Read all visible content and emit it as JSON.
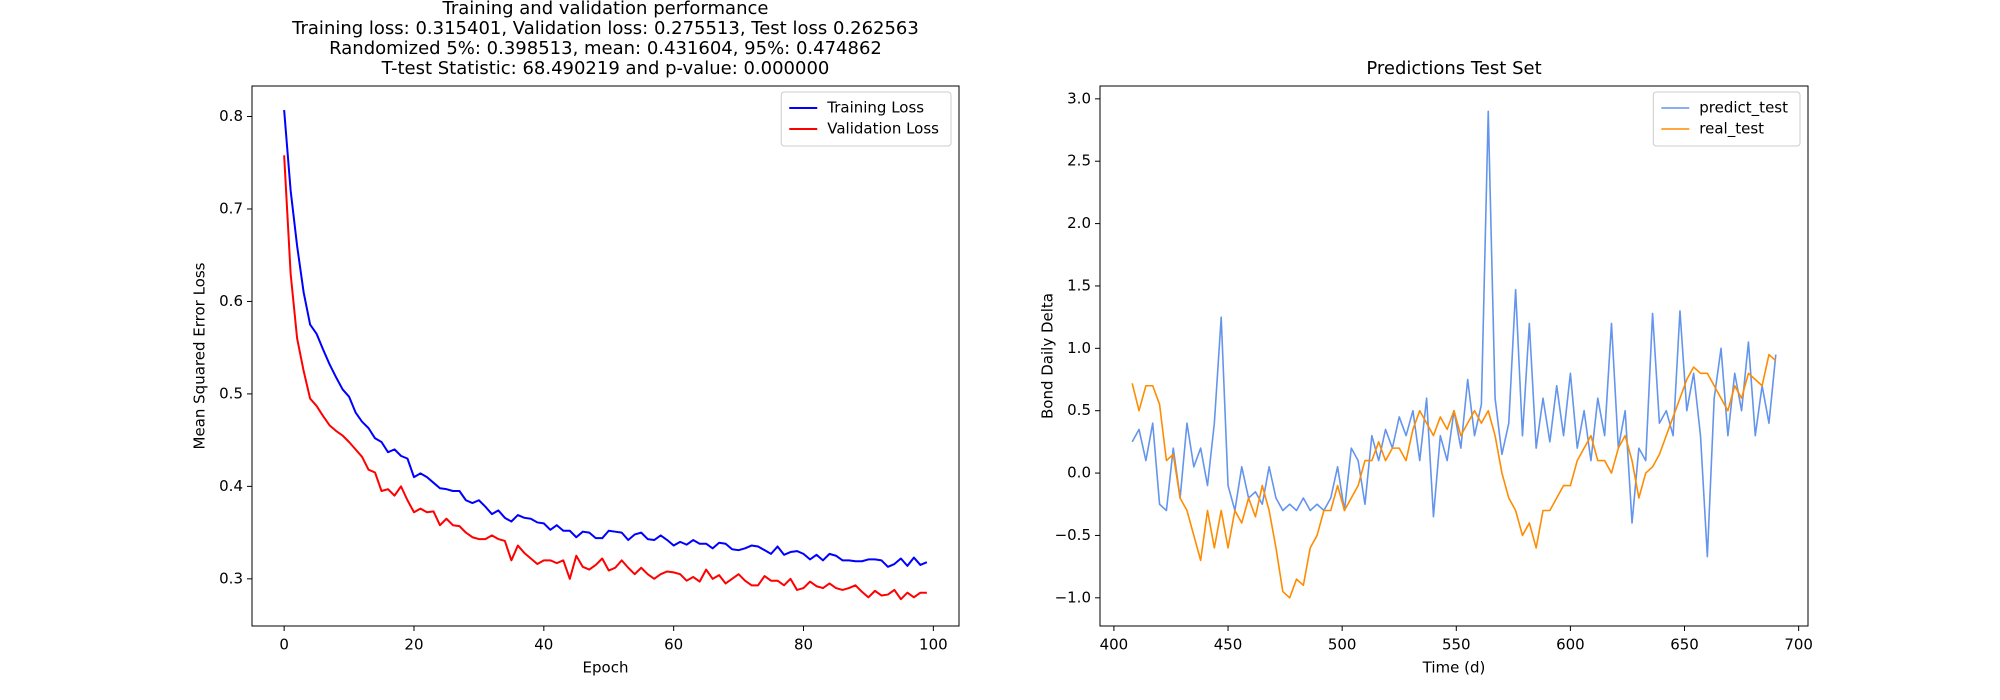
{
  "chart_data": [
    {
      "type": "line",
      "title": "Training and validation performance",
      "subtitle": [
        "Training loss: 0.315401, Validation loss: 0.275513, Test loss 0.262563",
        "Randomized 5%: 0.398513, mean: 0.431604, 95%: 0.474862",
        "T-test Statistic: 68.490219 and p-value: 0.000000"
      ],
      "xlabel": "Epoch",
      "ylabel": "Mean Squared Error Loss",
      "xlim": [
        -4.95,
        103.95
      ],
      "ylim": [
        0.249,
        0.833
      ],
      "xticks": [
        0,
        20,
        40,
        60,
        80,
        100
      ],
      "yticks": [
        0.3,
        0.4,
        0.5,
        0.6,
        0.7,
        0.8
      ],
      "legend": "upper right",
      "line_width": 2,
      "x": [
        0,
        1,
        2,
        3,
        4,
        5,
        6,
        7,
        8,
        9,
        10,
        11,
        12,
        13,
        14,
        15,
        16,
        17,
        18,
        19,
        20,
        21,
        22,
        23,
        24,
        25,
        26,
        27,
        28,
        29,
        30,
        31,
        32,
        33,
        34,
        35,
        36,
        37,
        38,
        39,
        40,
        41,
        42,
        43,
        44,
        45,
        46,
        47,
        48,
        49,
        50,
        51,
        52,
        53,
        54,
        55,
        56,
        57,
        58,
        59,
        60,
        61,
        62,
        63,
        64,
        65,
        66,
        67,
        68,
        69,
        70,
        71,
        72,
        73,
        74,
        75,
        76,
        77,
        78,
        79,
        80,
        81,
        82,
        83,
        84,
        85,
        86,
        87,
        88,
        89,
        90,
        91,
        92,
        93,
        94,
        95,
        96,
        97,
        98,
        99
      ],
      "series": [
        {
          "name": "Training Loss",
          "color": "#0000ff",
          "values": [
            0.807,
            0.72,
            0.66,
            0.61,
            0.575,
            0.565,
            0.548,
            0.532,
            0.518,
            0.505,
            0.497,
            0.48,
            0.47,
            0.463,
            0.452,
            0.448,
            0.437,
            0.44,
            0.433,
            0.43,
            0.41,
            0.414,
            0.41,
            0.404,
            0.398,
            0.397,
            0.395,
            0.395,
            0.385,
            0.382,
            0.385,
            0.378,
            0.37,
            0.374,
            0.366,
            0.362,
            0.369,
            0.366,
            0.365,
            0.361,
            0.36,
            0.353,
            0.358,
            0.352,
            0.352,
            0.345,
            0.351,
            0.35,
            0.344,
            0.344,
            0.352,
            0.351,
            0.35,
            0.342,
            0.348,
            0.35,
            0.343,
            0.342,
            0.347,
            0.342,
            0.336,
            0.34,
            0.337,
            0.342,
            0.338,
            0.338,
            0.333,
            0.339,
            0.338,
            0.332,
            0.331,
            0.333,
            0.336,
            0.335,
            0.331,
            0.327,
            0.335,
            0.326,
            0.329,
            0.33,
            0.327,
            0.321,
            0.326,
            0.32,
            0.327,
            0.325,
            0.32,
            0.32,
            0.319,
            0.319,
            0.321,
            0.321,
            0.32,
            0.313,
            0.316,
            0.322,
            0.314,
            0.323,
            0.315,
            0.318
          ]
        },
        {
          "name": "Validation Loss",
          "color": "#ff0000",
          "values": [
            0.758,
            0.63,
            0.56,
            0.525,
            0.495,
            0.487,
            0.476,
            0.466,
            0.46,
            0.455,
            0.448,
            0.44,
            0.432,
            0.418,
            0.415,
            0.395,
            0.397,
            0.39,
            0.4,
            0.385,
            0.372,
            0.376,
            0.372,
            0.373,
            0.358,
            0.365,
            0.358,
            0.357,
            0.35,
            0.345,
            0.343,
            0.343,
            0.347,
            0.343,
            0.341,
            0.32,
            0.336,
            0.328,
            0.322,
            0.316,
            0.32,
            0.32,
            0.317,
            0.32,
            0.3,
            0.325,
            0.313,
            0.31,
            0.315,
            0.322,
            0.309,
            0.312,
            0.32,
            0.312,
            0.305,
            0.312,
            0.305,
            0.3,
            0.305,
            0.308,
            0.307,
            0.305,
            0.298,
            0.302,
            0.297,
            0.31,
            0.3,
            0.304,
            0.295,
            0.3,
            0.305,
            0.298,
            0.293,
            0.293,
            0.303,
            0.298,
            0.298,
            0.293,
            0.3,
            0.288,
            0.29,
            0.297,
            0.292,
            0.29,
            0.295,
            0.29,
            0.288,
            0.29,
            0.293,
            0.286,
            0.28,
            0.287,
            0.282,
            0.283,
            0.288,
            0.278,
            0.285,
            0.28,
            0.285,
            0.285
          ]
        }
      ]
    },
    {
      "type": "line",
      "title": "Predictions Test Set",
      "xlabel": "Time (d)",
      "ylabel": "Bond Daily Delta",
      "xlim": [
        393.9,
        704.1
      ],
      "ylim": [
        -1.226,
        3.103
      ],
      "xticks": [
        400,
        450,
        500,
        550,
        600,
        650,
        700
      ],
      "yticks": [
        {
          "value": -1,
          "label": "−1.0"
        },
        {
          "value": -0.5,
          "label": "−0.5"
        },
        {
          "value": 0,
          "label": "0.0"
        },
        {
          "value": 0.5,
          "label": "0.5"
        },
        {
          "value": 1,
          "label": "1.0"
        },
        {
          "value": 1.5,
          "label": "1.5"
        },
        {
          "value": 2,
          "label": "2.0"
        },
        {
          "value": 2.5,
          "label": "2.5"
        },
        {
          "value": 3,
          "label": "3.0"
        }
      ],
      "legend": "upper right",
      "line_width": 1.6,
      "x": [
        408,
        411,
        414,
        417,
        420,
        423,
        426,
        429,
        432,
        435,
        438,
        441,
        444,
        447,
        450,
        453,
        456,
        459,
        462,
        465,
        468,
        471,
        474,
        477,
        480,
        483,
        486,
        489,
        492,
        495,
        498,
        501,
        504,
        507,
        510,
        513,
        516,
        519,
        522,
        525,
        528,
        531,
        534,
        537,
        540,
        543,
        546,
        549,
        552,
        555,
        558,
        561,
        564,
        567,
        570,
        573,
        576,
        579,
        582,
        585,
        588,
        591,
        594,
        597,
        600,
        603,
        606,
        609,
        612,
        615,
        618,
        621,
        624,
        627,
        630,
        633,
        636,
        639,
        642,
        645,
        648,
        651,
        654,
        657,
        660,
        663,
        666,
        669,
        672,
        675,
        678,
        681,
        684,
        687,
        690
      ],
      "series": [
        {
          "name": "predict_test",
          "color": "#6495ed",
          "values": [
            0.25,
            0.35,
            0.1,
            0.4,
            -0.25,
            -0.3,
            0.2,
            -0.2,
            0.4,
            0.05,
            0.2,
            -0.1,
            0.4,
            1.25,
            -0.1,
            -0.3,
            0.05,
            -0.2,
            -0.15,
            -0.25,
            0.05,
            -0.2,
            -0.3,
            -0.25,
            -0.3,
            -0.2,
            -0.3,
            -0.25,
            -0.3,
            -0.2,
            0.05,
            -0.3,
            0.2,
            0.1,
            -0.25,
            0.3,
            0.1,
            0.35,
            0.2,
            0.45,
            0.3,
            0.5,
            0.1,
            0.6,
            -0.35,
            0.3,
            0.1,
            0.5,
            0.2,
            0.75,
            0.3,
            0.55,
            2.9,
            0.6,
            0.15,
            0.4,
            1.47,
            0.3,
            1.2,
            0.2,
            0.6,
            0.25,
            0.7,
            0.3,
            0.8,
            0.2,
            0.5,
            0.1,
            0.6,
            0.3,
            1.2,
            0.2,
            0.5,
            -0.4,
            0.2,
            0.1,
            1.28,
            0.4,
            0.5,
            0.3,
            1.3,
            0.5,
            0.8,
            0.3,
            -0.67,
            0.6,
            1.0,
            0.3,
            0.8,
            0.5,
            1.05,
            0.3,
            0.7,
            0.4,
            0.95
          ]
        },
        {
          "name": "real_test",
          "color": "#ff8c00",
          "values": [
            0.72,
            0.5,
            0.7,
            0.7,
            0.55,
            0.1,
            0.15,
            -0.2,
            -0.3,
            -0.5,
            -0.7,
            -0.3,
            -0.6,
            -0.3,
            -0.6,
            -0.3,
            -0.4,
            -0.2,
            -0.35,
            -0.1,
            -0.3,
            -0.6,
            -0.95,
            -1.0,
            -0.85,
            -0.9,
            -0.6,
            -0.5,
            -0.3,
            -0.3,
            -0.1,
            -0.3,
            -0.2,
            -0.1,
            0.1,
            0.1,
            0.25,
            0.1,
            0.2,
            0.2,
            0.1,
            0.35,
            0.5,
            0.4,
            0.3,
            0.45,
            0.35,
            0.5,
            0.3,
            0.4,
            0.5,
            0.4,
            0.5,
            0.3,
            0.0,
            -0.2,
            -0.3,
            -0.5,
            -0.4,
            -0.6,
            -0.3,
            -0.3,
            -0.2,
            -0.1,
            -0.1,
            0.1,
            0.2,
            0.3,
            0.1,
            0.1,
            0.0,
            0.2,
            0.3,
            0.1,
            -0.2,
            0.0,
            0.05,
            0.15,
            0.3,
            0.45,
            0.6,
            0.75,
            0.85,
            0.8,
            0.8,
            0.7,
            0.6,
            0.5,
            0.7,
            0.6,
            0.8,
            0.75,
            0.7,
            0.95,
            0.9
          ]
        }
      ]
    }
  ]
}
